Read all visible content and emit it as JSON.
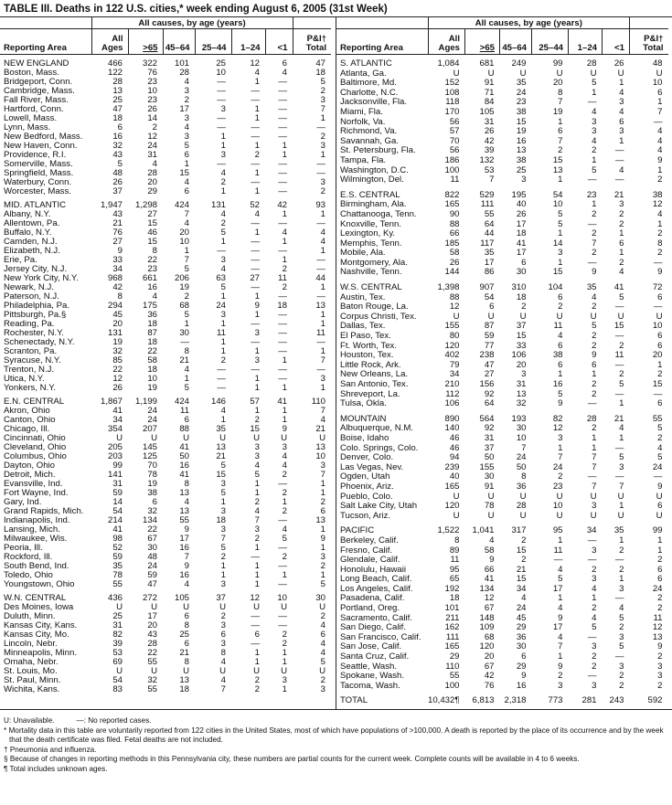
{
  "title": "TABLE III. Deaths in 122 U.S. cities,* week ending August 6, 2005 (31st Week)",
  "group_header": "All causes, by age (years)",
  "columns": {
    "area": "Reporting Area",
    "all_1": "All",
    "all_2": "Ages",
    "ge65": ">65",
    "c4564": "45–64",
    "c2544": "25–44",
    "c124": "1–24",
    "lt1": "<1",
    "pi_1": "P&I†",
    "pi_2": "Total"
  },
  "left": [
    [
      [
        "NEW ENGLAND",
        "466",
        "322",
        "101",
        "25",
        "12",
        "6",
        "47"
      ],
      [
        "Boston, Mass.",
        "122",
        "76",
        "28",
        "10",
        "4",
        "4",
        "18"
      ],
      [
        "Bridgeport, Conn.",
        "28",
        "23",
        "4",
        "—",
        "1",
        "—",
        "5"
      ],
      [
        "Cambridge, Mass.",
        "13",
        "10",
        "3",
        "—",
        "—",
        "—",
        "2"
      ],
      [
        "Fall River, Mass.",
        "25",
        "23",
        "2",
        "—",
        "—",
        "—",
        "3"
      ],
      [
        "Hartford, Conn.",
        "47",
        "26",
        "17",
        "3",
        "1",
        "—",
        "7"
      ],
      [
        "Lowell, Mass.",
        "18",
        "14",
        "3",
        "—",
        "1",
        "—",
        "1"
      ],
      [
        "Lynn, Mass.",
        "6",
        "2",
        "4",
        "—",
        "—",
        "—",
        "—"
      ],
      [
        "New Bedford, Mass.",
        "16",
        "12",
        "3",
        "1",
        "—",
        "—",
        "2"
      ],
      [
        "New Haven, Conn.",
        "32",
        "24",
        "5",
        "1",
        "1",
        "1",
        "3"
      ],
      [
        "Providence, R.I.",
        "43",
        "31",
        "6",
        "3",
        "2",
        "1",
        "1"
      ],
      [
        "Somerville, Mass.",
        "5",
        "4",
        "1",
        "—",
        "—",
        "—",
        "—"
      ],
      [
        "Springfield, Mass.",
        "48",
        "28",
        "15",
        "4",
        "1",
        "—",
        "—"
      ],
      [
        "Waterbury, Conn.",
        "26",
        "20",
        "4",
        "2",
        "—",
        "—",
        "3"
      ],
      [
        "Worcester, Mass.",
        "37",
        "29",
        "6",
        "1",
        "1",
        "—",
        "2"
      ]
    ],
    [
      [
        "MID. ATLANTIC",
        "1,947",
        "1,298",
        "424",
        "131",
        "52",
        "42",
        "93"
      ],
      [
        "Albany, N.Y.",
        "43",
        "27",
        "7",
        "4",
        "4",
        "1",
        "1"
      ],
      [
        "Allentown, Pa.",
        "21",
        "15",
        "4",
        "2",
        "—",
        "—",
        "—"
      ],
      [
        "Buffalo, N.Y.",
        "76",
        "46",
        "20",
        "5",
        "1",
        "4",
        "4"
      ],
      [
        "Camden, N.J.",
        "27",
        "15",
        "10",
        "1",
        "—",
        "1",
        "4"
      ],
      [
        "Elizabeth, N.J.",
        "9",
        "8",
        "1",
        "—",
        "—",
        "—",
        "1"
      ],
      [
        "Erie, Pa.",
        "33",
        "22",
        "7",
        "3",
        "—",
        "1",
        "—"
      ],
      [
        "Jersey City, N.J.",
        "34",
        "23",
        "5",
        "4",
        "—",
        "2",
        "—"
      ],
      [
        "New York City, N.Y.",
        "968",
        "661",
        "206",
        "63",
        "27",
        "11",
        "44"
      ],
      [
        "Newark, N.J.",
        "42",
        "16",
        "19",
        "5",
        "—",
        "2",
        "1"
      ],
      [
        "Paterson, N.J.",
        "8",
        "4",
        "2",
        "1",
        "1",
        "—",
        "—"
      ],
      [
        "Philadelphia, Pa.",
        "294",
        "175",
        "68",
        "24",
        "9",
        "18",
        "13"
      ],
      [
        "Pittsburgh, Pa.§",
        "45",
        "36",
        "5",
        "3",
        "1",
        "—",
        "1"
      ],
      [
        "Reading, Pa.",
        "20",
        "18",
        "1",
        "1",
        "—",
        "—",
        "1"
      ],
      [
        "Rochester, N.Y.",
        "131",
        "87",
        "30",
        "11",
        "3",
        "—",
        "11"
      ],
      [
        "Schenectady, N.Y.",
        "19",
        "18",
        "—",
        "1",
        "—",
        "—",
        "—"
      ],
      [
        "Scranton, Pa.",
        "32",
        "22",
        "8",
        "1",
        "1",
        "—",
        "1"
      ],
      [
        "Syracuse, N.Y.",
        "85",
        "58",
        "21",
        "2",
        "3",
        "1",
        "7"
      ],
      [
        "Trenton, N.J.",
        "22",
        "18",
        "4",
        "—",
        "—",
        "—",
        "—"
      ],
      [
        "Utica, N.Y.",
        "12",
        "10",
        "1",
        "—",
        "1",
        "—",
        "3"
      ],
      [
        "Yonkers, N.Y.",
        "26",
        "19",
        "5",
        "—",
        "1",
        "1",
        "1"
      ]
    ],
    [
      [
        "E.N. CENTRAL",
        "1,867",
        "1,199",
        "424",
        "146",
        "57",
        "41",
        "110"
      ],
      [
        "Akron, Ohio",
        "41",
        "24",
        "11",
        "4",
        "1",
        "1",
        "7"
      ],
      [
        "Canton, Ohio",
        "34",
        "24",
        "6",
        "1",
        "2",
        "1",
        "4"
      ],
      [
        "Chicago, Ill.",
        "354",
        "207",
        "88",
        "35",
        "15",
        "9",
        "21"
      ],
      [
        "Cincinnati, Ohio",
        "U",
        "U",
        "U",
        "U",
        "U",
        "U",
        "U"
      ],
      [
        "Cleveland, Ohio",
        "205",
        "145",
        "41",
        "13",
        "3",
        "3",
        "13"
      ],
      [
        "Columbus, Ohio",
        "203",
        "125",
        "50",
        "21",
        "3",
        "4",
        "10"
      ],
      [
        "Dayton, Ohio",
        "99",
        "70",
        "16",
        "5",
        "4",
        "4",
        "3"
      ],
      [
        "Detroit, Mich.",
        "141",
        "78",
        "41",
        "15",
        "5",
        "2",
        "7"
      ],
      [
        "Evansville, Ind.",
        "31",
        "19",
        "8",
        "3",
        "1",
        "—",
        "1"
      ],
      [
        "Fort Wayne, Ind.",
        "59",
        "38",
        "13",
        "5",
        "1",
        "2",
        "1"
      ],
      [
        "Gary, Ind.",
        "14",
        "6",
        "4",
        "1",
        "2",
        "1",
        "2"
      ],
      [
        "Grand Rapids, Mich.",
        "54",
        "32",
        "13",
        "3",
        "4",
        "2",
        "6"
      ],
      [
        "Indianapolis, Ind.",
        "214",
        "134",
        "55",
        "18",
        "7",
        "—",
        "13"
      ],
      [
        "Lansing, Mich.",
        "41",
        "22",
        "9",
        "3",
        "3",
        "4",
        "1"
      ],
      [
        "Milwaukee, Wis.",
        "98",
        "67",
        "17",
        "7",
        "2",
        "5",
        "9"
      ],
      [
        "Peoria, Ill.",
        "52",
        "30",
        "16",
        "5",
        "1",
        "—",
        "1"
      ],
      [
        "Rockford, Ill.",
        "59",
        "48",
        "7",
        "2",
        "—",
        "2",
        "3"
      ],
      [
        "South Bend, Ind.",
        "35",
        "24",
        "9",
        "1",
        "1",
        "—",
        "2"
      ],
      [
        "Toledo, Ohio",
        "78",
        "59",
        "16",
        "1",
        "1",
        "1",
        "1"
      ],
      [
        "Youngstown, Ohio",
        "55",
        "47",
        "4",
        "3",
        "1",
        "—",
        "5"
      ]
    ],
    [
      [
        "W.N. CENTRAL",
        "436",
        "272",
        "105",
        "37",
        "12",
        "10",
        "30"
      ],
      [
        "Des Moines, Iowa",
        "U",
        "U",
        "U",
        "U",
        "U",
        "U",
        "U"
      ],
      [
        "Duluth, Minn.",
        "25",
        "17",
        "6",
        "2",
        "—",
        "—",
        "2"
      ],
      [
        "Kansas City, Kans.",
        "31",
        "20",
        "8",
        "3",
        "—",
        "—",
        "4"
      ],
      [
        "Kansas City, Mo.",
        "82",
        "43",
        "25",
        "6",
        "6",
        "2",
        "6"
      ],
      [
        "Lincoln, Nebr.",
        "39",
        "28",
        "6",
        "3",
        "—",
        "2",
        "4"
      ],
      [
        "Minneapolis, Minn.",
        "53",
        "22",
        "21",
        "8",
        "1",
        "1",
        "4"
      ],
      [
        "Omaha, Nebr.",
        "69",
        "55",
        "8",
        "4",
        "1",
        "1",
        "5"
      ],
      [
        "St. Louis, Mo.",
        "U",
        "U",
        "U",
        "U",
        "U",
        "U",
        "U"
      ],
      [
        "St. Paul, Minn.",
        "54",
        "32",
        "13",
        "4",
        "2",
        "3",
        "2"
      ],
      [
        "Wichita, Kans.",
        "83",
        "55",
        "18",
        "7",
        "2",
        "1",
        "3"
      ]
    ]
  ],
  "right": [
    [
      [
        "S. ATLANTIC",
        "1,084",
        "681",
        "249",
        "99",
        "28",
        "26",
        "48"
      ],
      [
        "Atlanta, Ga.",
        "U",
        "U",
        "U",
        "U",
        "U",
        "U",
        "U"
      ],
      [
        "Baltimore, Md.",
        "152",
        "91",
        "35",
        "20",
        "5",
        "1",
        "10"
      ],
      [
        "Charlotte, N.C.",
        "108",
        "71",
        "24",
        "8",
        "1",
        "4",
        "6"
      ],
      [
        "Jacksonville, Fla.",
        "118",
        "84",
        "23",
        "7",
        "—",
        "3",
        "1"
      ],
      [
        "Miami, Fla.",
        "170",
        "105",
        "38",
        "19",
        "4",
        "4",
        "7"
      ],
      [
        "Norfolk, Va.",
        "56",
        "31",
        "15",
        "1",
        "3",
        "6",
        "—"
      ],
      [
        "Richmond, Va.",
        "57",
        "26",
        "19",
        "6",
        "3",
        "3",
        "4"
      ],
      [
        "Savannah, Ga.",
        "70",
        "42",
        "16",
        "7",
        "4",
        "1",
        "4"
      ],
      [
        "St. Petersburg, Fla.",
        "56",
        "39",
        "13",
        "2",
        "2",
        "—",
        "4"
      ],
      [
        "Tampa, Fla.",
        "186",
        "132",
        "38",
        "15",
        "1",
        "—",
        "9"
      ],
      [
        "Washington, D.C.",
        "100",
        "53",
        "25",
        "13",
        "5",
        "4",
        "1"
      ],
      [
        "Wilmington, Del.",
        "11",
        "7",
        "3",
        "1",
        "—",
        "—",
        "2"
      ]
    ],
    [
      [
        "E.S. CENTRAL",
        "822",
        "529",
        "195",
        "54",
        "23",
        "21",
        "38"
      ],
      [
        "Birmingham, Ala.",
        "165",
        "111",
        "40",
        "10",
        "1",
        "3",
        "12"
      ],
      [
        "Chattanooga, Tenn.",
        "90",
        "55",
        "26",
        "5",
        "2",
        "2",
        "4"
      ],
      [
        "Knoxville, Tenn.",
        "88",
        "64",
        "17",
        "5",
        "—",
        "2",
        "1"
      ],
      [
        "Lexington, Ky.",
        "66",
        "44",
        "18",
        "1",
        "2",
        "1",
        "2"
      ],
      [
        "Memphis, Tenn.",
        "185",
        "117",
        "41",
        "14",
        "7",
        "6",
        "8"
      ],
      [
        "Mobile, Ala.",
        "58",
        "35",
        "17",
        "3",
        "2",
        "1",
        "2"
      ],
      [
        "Montgomery, Ala.",
        "26",
        "17",
        "6",
        "1",
        "—",
        "2",
        "—"
      ],
      [
        "Nashville, Tenn.",
        "144",
        "86",
        "30",
        "15",
        "9",
        "4",
        "9"
      ]
    ],
    [
      [
        "W.S. CENTRAL",
        "1,398",
        "907",
        "310",
        "104",
        "35",
        "41",
        "72"
      ],
      [
        "Austin, Tex.",
        "88",
        "54",
        "18",
        "6",
        "4",
        "5",
        "6"
      ],
      [
        "Baton Rouge, La.",
        "12",
        "6",
        "2",
        "2",
        "2",
        "—",
        "—"
      ],
      [
        "Corpus Christi, Tex.",
        "U",
        "U",
        "U",
        "U",
        "U",
        "U",
        "U"
      ],
      [
        "Dallas, Tex.",
        "155",
        "87",
        "37",
        "11",
        "5",
        "15",
        "10"
      ],
      [
        "El Paso, Tex.",
        "80",
        "59",
        "15",
        "4",
        "2",
        "—",
        "6"
      ],
      [
        "Ft. Worth, Tex.",
        "120",
        "77",
        "33",
        "6",
        "2",
        "2",
        "6"
      ],
      [
        "Houston, Tex.",
        "402",
        "238",
        "106",
        "38",
        "9",
        "11",
        "20"
      ],
      [
        "Little Rock, Ark.",
        "79",
        "47",
        "20",
        "6",
        "6",
        "—",
        "1"
      ],
      [
        "New Orleans, La.",
        "34",
        "27",
        "3",
        "1",
        "1",
        "2",
        "2"
      ],
      [
        "San Antonio, Tex.",
        "210",
        "156",
        "31",
        "16",
        "2",
        "5",
        "15"
      ],
      [
        "Shreveport, La.",
        "112",
        "92",
        "13",
        "5",
        "2",
        "—",
        "—"
      ],
      [
        "Tulsa, Okla.",
        "106",
        "64",
        "32",
        "9",
        "—",
        "1",
        "6"
      ]
    ],
    [
      [
        "MOUNTAIN",
        "890",
        "564",
        "193",
        "82",
        "28",
        "21",
        "55"
      ],
      [
        "Albuquerque, N.M.",
        "140",
        "92",
        "30",
        "12",
        "2",
        "4",
        "5"
      ],
      [
        "Boise, Idaho",
        "46",
        "31",
        "10",
        "3",
        "1",
        "1",
        "2"
      ],
      [
        "Colo. Springs, Colo.",
        "46",
        "37",
        "7",
        "1",
        "1",
        "—",
        "4"
      ],
      [
        "Denver, Colo.",
        "94",
        "50",
        "24",
        "7",
        "7",
        "5",
        "5"
      ],
      [
        "Las Vegas, Nev.",
        "239",
        "155",
        "50",
        "24",
        "7",
        "3",
        "24"
      ],
      [
        "Ogden, Utah",
        "40",
        "30",
        "8",
        "2",
        "—",
        "—",
        "—"
      ],
      [
        "Phoenix, Ariz.",
        "165",
        "91",
        "36",
        "23",
        "7",
        "7",
        "9"
      ],
      [
        "Pueblo, Colo.",
        "U",
        "U",
        "U",
        "U",
        "U",
        "U",
        "U"
      ],
      [
        "Salt Lake City, Utah",
        "120",
        "78",
        "28",
        "10",
        "3",
        "1",
        "6"
      ],
      [
        "Tucson, Ariz.",
        "U",
        "U",
        "U",
        "U",
        "U",
        "U",
        "U"
      ]
    ],
    [
      [
        "PACIFIC",
        "1,522",
        "1,041",
        "317",
        "95",
        "34",
        "35",
        "99"
      ],
      [
        "Berkeley, Calif.",
        "8",
        "4",
        "2",
        "1",
        "—",
        "1",
        "1"
      ],
      [
        "Fresno, Calif.",
        "89",
        "58",
        "15",
        "11",
        "3",
        "2",
        "1"
      ],
      [
        "Glendale, Calif.",
        "11",
        "9",
        "2",
        "—",
        "—",
        "—",
        "2"
      ],
      [
        "Honolulu, Hawaii",
        "95",
        "66",
        "21",
        "4",
        "2",
        "2",
        "6"
      ],
      [
        "Long Beach, Calif.",
        "65",
        "41",
        "15",
        "5",
        "3",
        "1",
        "6"
      ],
      [
        "Los Angeles, Calif.",
        "192",
        "134",
        "34",
        "17",
        "4",
        "3",
        "24"
      ],
      [
        "Pasadena, Calif.",
        "18",
        "12",
        "4",
        "1",
        "1",
        "—",
        "2"
      ],
      [
        "Portland, Oreg.",
        "101",
        "67",
        "24",
        "4",
        "2",
        "4",
        "2"
      ],
      [
        "Sacramento, Calif.",
        "211",
        "148",
        "45",
        "9",
        "4",
        "5",
        "11"
      ],
      [
        "San Diego, Calif.",
        "162",
        "109",
        "29",
        "17",
        "5",
        "2",
        "12"
      ],
      [
        "San Francisco, Calif.",
        "111",
        "68",
        "36",
        "4",
        "—",
        "3",
        "13"
      ],
      [
        "San Jose, Calif.",
        "165",
        "120",
        "30",
        "7",
        "3",
        "5",
        "9"
      ],
      [
        "Santa Cruz, Calif.",
        "29",
        "20",
        "6",
        "1",
        "2",
        "—",
        "2"
      ],
      [
        "Seattle, Wash.",
        "110",
        "67",
        "29",
        "9",
        "2",
        "3",
        "3"
      ],
      [
        "Spokane, Wash.",
        "55",
        "42",
        "9",
        "2",
        "—",
        "2",
        "3"
      ],
      [
        "Tacoma, Wash.",
        "100",
        "76",
        "16",
        "3",
        "3",
        "2",
        "2"
      ]
    ],
    [
      [
        "TOTAL",
        "10,432¶",
        "6,813",
        "2,318",
        "773",
        "281",
        "243",
        "592"
      ]
    ]
  ],
  "notes": {
    "legend_u": "U: Unavailable.",
    "legend_dash": "—: No reported cases.",
    "n1": "* Mortality data in this table are voluntarily reported from 122 cities in the United States, most of which have populations of >100,000. A death is reported by the place of its occurrence and by the week that the death certificate was filed. Fetal deaths are not included.",
    "n2": "† Pneumonia and influenza.",
    "n3": "§ Because of changes in reporting methods in this Pennsylvania city, these numbers are partial counts for the current week. Complete counts will be available in 4 to 6 weeks.",
    "n4": "¶ Total includes unknown ages."
  }
}
